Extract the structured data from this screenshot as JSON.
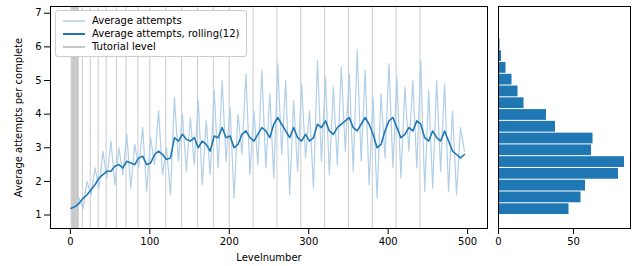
{
  "chart_data": [
    {
      "type": "line",
      "xlabel": "Levelnumber",
      "ylabel": "Average attempts per complete",
      "xlim": [
        -25,
        525
      ],
      "ylim": [
        0.6,
        7.2
      ],
      "xticks": [
        0,
        100,
        200,
        300,
        400,
        500
      ],
      "yticks": [
        1,
        2,
        3,
        4,
        5,
        6,
        7
      ],
      "grid": false,
      "legend": "upper left",
      "x": [
        1,
        6,
        11,
        16,
        21,
        26,
        31,
        36,
        41,
        46,
        51,
        56,
        61,
        66,
        71,
        76,
        81,
        86,
        91,
        96,
        101,
        106,
        111,
        116,
        121,
        126,
        131,
        136,
        141,
        146,
        151,
        156,
        161,
        166,
        171,
        176,
        181,
        186,
        191,
        196,
        201,
        206,
        211,
        216,
        221,
        226,
        231,
        236,
        241,
        246,
        251,
        256,
        261,
        266,
        271,
        276,
        281,
        286,
        291,
        296,
        301,
        306,
        311,
        316,
        321,
        326,
        331,
        336,
        341,
        346,
        351,
        356,
        361,
        366,
        371,
        376,
        381,
        386,
        391,
        396,
        401,
        406,
        411,
        416,
        421,
        426,
        431,
        436,
        441,
        446,
        451,
        456,
        461,
        466,
        471,
        476,
        481,
        486,
        491,
        496
      ],
      "series": [
        {
          "name": "Average attempts",
          "color": "#b0cfe8",
          "values": [
            1.2,
            1.3,
            1.5,
            1.2,
            2.0,
            1.6,
            2.4,
            1.8,
            2.9,
            2.1,
            3.2,
            1.9,
            3.0,
            2.2,
            3.4,
            1.8,
            3.1,
            2.4,
            3.6,
            1.7,
            3.3,
            2.5,
            4.1,
            2.2,
            3.0,
            1.6,
            4.5,
            2.6,
            4.0,
            2.3,
            3.9,
            2.5,
            4.4,
            1.9,
            3.8,
            2.2,
            4.7,
            2.4,
            5.0,
            2.6,
            4.2,
            1.5,
            4.0,
            2.8,
            5.2,
            2.2,
            4.1,
            2.5,
            5.3,
            2.4,
            4.6,
            2.1,
            5.5,
            2.8,
            5.0,
            1.6,
            4.4,
            2.3,
            4.9,
            2.7,
            4.1,
            1.8,
            5.6,
            2.6,
            5.1,
            2.2,
            4.8,
            2.5,
            5.4,
            2.9,
            5.2,
            2.3,
            5.9,
            2.6,
            5.3,
            1.9,
            4.5,
            1.5,
            4.6,
            2.7,
            5.5,
            2.4,
            5.1,
            2.1,
            4.8,
            2.9,
            5.0,
            2.4,
            5.6,
            1.7,
            4.7,
            1.8,
            5.0,
            2.3,
            4.9,
            1.7,
            4.1,
            1.6,
            3.6,
            2.9
          ]
        },
        {
          "name": "Average attempts, rolling(12)",
          "color": "#1f77b4",
          "values": [
            1.2,
            1.25,
            1.35,
            1.5,
            1.6,
            1.75,
            1.9,
            2.1,
            2.2,
            2.3,
            2.3,
            2.45,
            2.5,
            2.4,
            2.6,
            2.55,
            2.5,
            2.7,
            2.75,
            2.5,
            2.55,
            2.8,
            2.9,
            2.8,
            2.65,
            2.7,
            3.3,
            3.2,
            3.4,
            3.25,
            3.2,
            3.3,
            3.0,
            3.2,
            3.1,
            2.9,
            3.35,
            3.3,
            3.6,
            3.3,
            3.35,
            3.0,
            3.1,
            3.4,
            3.5,
            3.3,
            3.2,
            3.4,
            3.6,
            3.5,
            3.3,
            3.7,
            3.9,
            3.7,
            3.5,
            3.3,
            3.6,
            3.3,
            3.2,
            3.4,
            3.2,
            3.3,
            3.7,
            3.6,
            3.8,
            3.5,
            3.4,
            3.6,
            3.7,
            3.8,
            3.9,
            3.6,
            3.5,
            3.7,
            3.9,
            3.7,
            3.4,
            3.0,
            3.1,
            3.5,
            3.8,
            3.9,
            3.6,
            3.3,
            3.4,
            3.6,
            3.5,
            3.8,
            3.7,
            3.3,
            3.2,
            3.5,
            3.3,
            3.2,
            3.5,
            3.2,
            2.9,
            2.8,
            2.7,
            2.8
          ]
        }
      ],
      "tutorial_levels": {
        "name": "Tutorial level",
        "color": "#b5b5b5",
        "x": [
          1,
          2,
          3,
          4,
          5,
          6,
          7,
          8,
          9,
          10,
          15,
          25,
          35,
          45,
          58,
          70,
          85,
          100,
          120,
          140,
          160,
          180,
          200,
          230,
          260,
          290,
          320,
          350,
          380,
          410,
          440
        ]
      }
    },
    {
      "type": "histogram",
      "orientation": "horizontal",
      "color": "#1f77b4",
      "bins": [
        1.0,
        1.35,
        1.7,
        2.05,
        2.4,
        2.75,
        3.1,
        3.45,
        3.8,
        4.15,
        4.5,
        4.85,
        5.2,
        5.55,
        5.9,
        6.25
      ],
      "counts": [
        47,
        55,
        58,
        80,
        84,
        62,
        63,
        38,
        32,
        17,
        13,
        9,
        5,
        2,
        1
      ],
      "xlim": [
        0,
        88
      ],
      "xticks": [
        0,
        50
      ],
      "ylim": [
        0.6,
        7.2
      ],
      "tick_labels": "x"
    }
  ]
}
